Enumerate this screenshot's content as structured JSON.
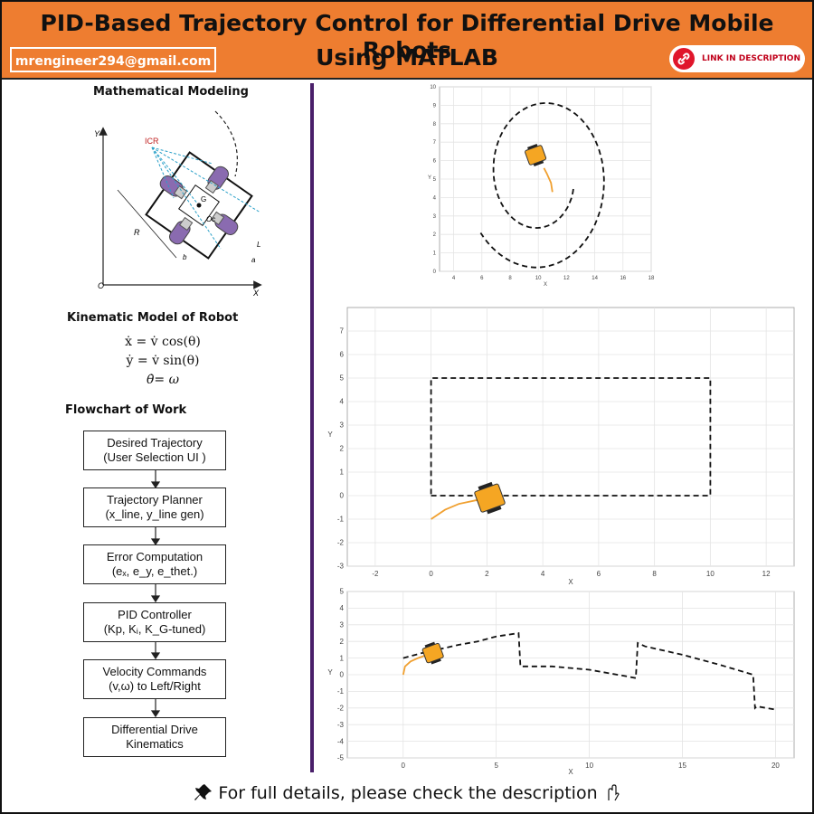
{
  "header": {
    "title_line1": "PID-Based Trajectory Control for Differential Drive Mobile Robots",
    "title_line2": "Using MATLAB",
    "email": "mrengineer294@gmail.com",
    "link_label": "LINK IN DESCRIPTION"
  },
  "colors": {
    "header_bg": "#ee7d30",
    "divider": "#4a1f6a",
    "robot": "#f5a623",
    "path_actual": "#f0a030"
  },
  "left": {
    "modeling_title": "Mathematical Modeling",
    "diagram_labels": {
      "y": "Y",
      "x": "X",
      "origin": "O",
      "icr": "ICR",
      "r": "R",
      "b": "b",
      "l": "L",
      "a": "a",
      "g": "G",
      "oc": "Oc"
    },
    "kinematic_title": "Kinematic Model of Robot",
    "equations": [
      "ẋ = v̇ cos(θ)",
      "ẏ = v̇ sin(θ)",
      "θ̇= ω"
    ],
    "flowchart_title": "Flowchart of Work",
    "flowchart": [
      {
        "line1": "Desired Trajectory",
        "line2": "(User Selection UI )"
      },
      {
        "line1": "Trajectory Planner",
        "line2": "(x_line, y_line gen)"
      },
      {
        "line1": "Error Computation",
        "line2": "(eₓ, e_y, e_thet.)"
      },
      {
        "line1": "PID Controller",
        "line2": "(Kp, Kᵢ, K_G-tuned)"
      },
      {
        "line1": "Velocity Commands",
        "line2": "(v,ω) to Left/Right"
      },
      {
        "line1": "Differential Drive",
        "line2": "Kinematics"
      }
    ]
  },
  "chart_data": [
    {
      "type": "line",
      "xlabel": "X",
      "ylabel": "Y",
      "xlim": [
        3,
        18
      ],
      "ylim": [
        0,
        10
      ],
      "xticks": [
        4,
        6,
        8,
        10,
        12,
        14,
        16,
        18
      ],
      "yticks": [
        0,
        1,
        2,
        3,
        4,
        5,
        6,
        7,
        8,
        9,
        10
      ],
      "series": [
        {
          "style": "dashed",
          "shape": "spiral",
          "center": [
            10.2,
            5.2
          ],
          "r_start": 2.4,
          "r_end": 5.3,
          "turns": 1.35
        },
        {
          "style": "solid",
          "x": [
            10.4,
            10.6,
            10.9,
            11.0
          ],
          "y": [
            5.6,
            5.3,
            4.8,
            4.3
          ]
        }
      ],
      "robot": {
        "x": 9.8,
        "y": 6.3
      }
    },
    {
      "type": "line",
      "xlabel": "X",
      "ylabel": "Y",
      "xlim": [
        -3,
        13
      ],
      "ylim": [
        -3,
        8
      ],
      "xticks": [
        -2,
        0,
        2,
        4,
        6,
        8,
        10,
        12
      ],
      "yticks": [
        -3,
        -2,
        -1,
        0,
        1,
        2,
        3,
        4,
        5,
        6,
        7
      ],
      "series": [
        {
          "style": "dashed",
          "x": [
            0,
            10,
            10,
            0,
            0
          ],
          "y": [
            0,
            0,
            5,
            5,
            0
          ]
        },
        {
          "style": "solid",
          "x": [
            0,
            0.5,
            1.0,
            1.6,
            2.1
          ],
          "y": [
            -1.0,
            -0.6,
            -0.35,
            -0.2,
            -0.15
          ]
        }
      ],
      "robot": {
        "x": 2.1,
        "y": -0.1
      }
    },
    {
      "type": "line",
      "xlabel": "X",
      "ylabel": "Y",
      "xlim": [
        -3,
        21
      ],
      "ylim": [
        -5,
        5
      ],
      "xticks": [
        0,
        5,
        10,
        15,
        20
      ],
      "yticks": [
        -5,
        -4,
        -3,
        -2,
        -1,
        0,
        1,
        2,
        3,
        4,
        5
      ],
      "series": [
        {
          "style": "dashed",
          "x": [
            0,
            1,
            2,
            3,
            4,
            5,
            6.2,
            6.3,
            6.5,
            8,
            10,
            12,
            12.5,
            12.6,
            13,
            15,
            17,
            18.8,
            18.9,
            19,
            20
          ],
          "y": [
            1.0,
            1.3,
            1.55,
            1.8,
            2.0,
            2.3,
            2.5,
            0.5,
            0.5,
            0.5,
            0.3,
            -0.1,
            -0.2,
            1.9,
            1.7,
            1.2,
            0.6,
            0.0,
            -2.0,
            -1.9,
            -2.1
          ]
        },
        {
          "style": "solid",
          "x": [
            0,
            0.1,
            0.4,
            0.8,
            1.3
          ],
          "y": [
            0.0,
            0.5,
            0.8,
            1.0,
            1.2
          ]
        }
      ],
      "robot": {
        "x": 1.6,
        "y": 1.3
      }
    }
  ],
  "footer": {
    "text": "For full details, please check the description"
  }
}
